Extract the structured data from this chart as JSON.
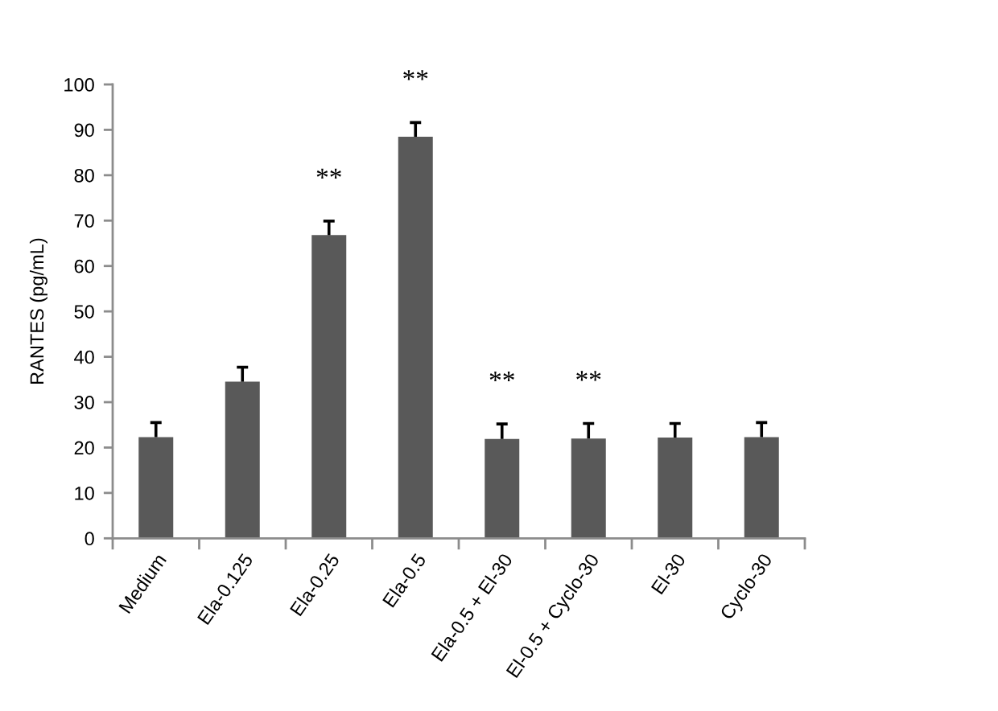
{
  "chart_data": {
    "type": "bar",
    "categories": [
      "Medium",
      "Ela-0.125",
      "Ela-0.25",
      "Ela-0.5",
      "Ela-0.5 + El-30",
      "El-0.5 + Cyclo-30",
      "El-30",
      "Cyclo-30"
    ],
    "values": [
      22.3,
      34.5,
      66.8,
      88.5,
      21.9,
      22.0,
      22.2,
      22.3
    ],
    "errors": [
      [
        22.3,
        25.5
      ],
      [
        34.5,
        37.7
      ],
      [
        66.8,
        69.9
      ],
      [
        88.5,
        91.6
      ],
      [
        21.9,
        25.2
      ],
      [
        22.0,
        25.3
      ],
      [
        22.2,
        25.3
      ],
      [
        22.3,
        25.5
      ]
    ],
    "color": "#595959",
    "ylabel": "RANTES (pg/mL)",
    "ylim": [
      0,
      100
    ],
    "yticks": [
      0,
      10,
      20,
      30,
      40,
      50,
      60,
      70,
      80,
      90,
      100
    ],
    "annotations": [
      {
        "text": "**",
        "x": "Ela-0.25",
        "y": 66.8
      },
      {
        "text": "**",
        "x": "Ela-0.5",
        "y": 88.5
      },
      {
        "text": "**",
        "x": "Ela-0.5 + El-30",
        "y": 21.9
      },
      {
        "text": "**",
        "x": "El-0.5 + Cyclo-30",
        "y": 22.0
      }
    ]
  }
}
